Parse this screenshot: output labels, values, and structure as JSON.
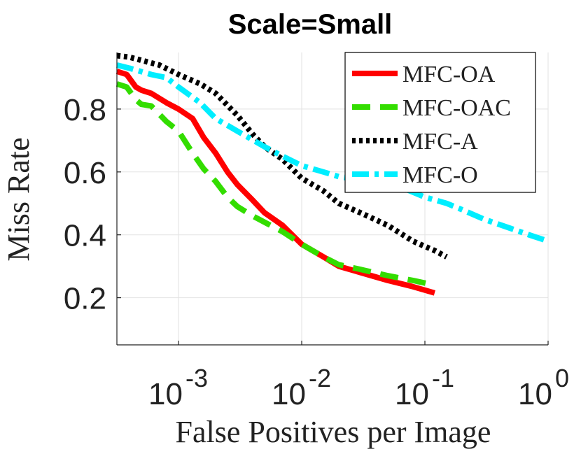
{
  "chart_data": {
    "type": "line",
    "title": "Scale=Small",
    "xlabel": "False Positives per Image",
    "ylabel": "Miss Rate",
    "x_scale": "log",
    "xlim": [
      0.0003162,
      1.0
    ],
    "ylim": [
      0.05,
      0.98
    ],
    "grid": true,
    "legend_position": "top-right",
    "x_ticks": [
      {
        "value": 0.001,
        "base": "10",
        "exponent": "-3"
      },
      {
        "value": 0.01,
        "base": "10",
        "exponent": "-2"
      },
      {
        "value": 0.1,
        "base": "10",
        "exponent": "-1"
      },
      {
        "value": 1,
        "base": "10",
        "exponent": "0"
      }
    ],
    "y_ticks": [
      {
        "value": 0.2,
        "label": "0.2"
      },
      {
        "value": 0.4,
        "label": "0.4"
      },
      {
        "value": 0.6,
        "label": "0.6"
      },
      {
        "value": 0.8,
        "label": "0.8"
      }
    ],
    "series": [
      {
        "name": "MFC-OA",
        "color": "#ff0000",
        "style": "solid",
        "points": [
          [
            0.000316,
            0.92
          ],
          [
            0.00038,
            0.91
          ],
          [
            0.00045,
            0.87
          ],
          [
            0.0005,
            0.86
          ],
          [
            0.0006,
            0.85
          ],
          [
            0.0008,
            0.82
          ],
          [
            0.001,
            0.8
          ],
          [
            0.0013,
            0.77
          ],
          [
            0.0016,
            0.71
          ],
          [
            0.002,
            0.66
          ],
          [
            0.0025,
            0.6
          ],
          [
            0.003,
            0.56
          ],
          [
            0.004,
            0.51
          ],
          [
            0.005,
            0.47
          ],
          [
            0.007,
            0.43
          ],
          [
            0.01,
            0.37
          ],
          [
            0.015,
            0.33
          ],
          [
            0.02,
            0.3
          ],
          [
            0.03,
            0.28
          ],
          [
            0.05,
            0.255
          ],
          [
            0.08,
            0.235
          ],
          [
            0.12,
            0.215
          ]
        ]
      },
      {
        "name": "MFC-OAC",
        "color": "#33dd00",
        "style": "dashed",
        "points": [
          [
            0.000316,
            0.88
          ],
          [
            0.00038,
            0.87
          ],
          [
            0.00045,
            0.83
          ],
          [
            0.0005,
            0.815
          ],
          [
            0.0006,
            0.81
          ],
          [
            0.0008,
            0.76
          ],
          [
            0.001,
            0.73
          ],
          [
            0.0013,
            0.66
          ],
          [
            0.0016,
            0.61
          ],
          [
            0.002,
            0.57
          ],
          [
            0.0025,
            0.52
          ],
          [
            0.003,
            0.49
          ],
          [
            0.004,
            0.46
          ],
          [
            0.005,
            0.44
          ],
          [
            0.007,
            0.41
          ],
          [
            0.01,
            0.37
          ],
          [
            0.015,
            0.33
          ],
          [
            0.02,
            0.305
          ],
          [
            0.03,
            0.29
          ],
          [
            0.05,
            0.27
          ],
          [
            0.08,
            0.255
          ],
          [
            0.12,
            0.24
          ]
        ]
      },
      {
        "name": "MFC-A",
        "color": "#000000",
        "style": "dotted",
        "points": [
          [
            0.000316,
            0.97
          ],
          [
            0.0004,
            0.965
          ],
          [
            0.0005,
            0.955
          ],
          [
            0.0007,
            0.94
          ],
          [
            0.001,
            0.91
          ],
          [
            0.0015,
            0.88
          ],
          [
            0.002,
            0.85
          ],
          [
            0.003,
            0.78
          ],
          [
            0.004,
            0.72
          ],
          [
            0.005,
            0.68
          ],
          [
            0.007,
            0.64
          ],
          [
            0.01,
            0.58
          ],
          [
            0.015,
            0.54
          ],
          [
            0.02,
            0.5
          ],
          [
            0.03,
            0.47
          ],
          [
            0.05,
            0.43
          ],
          [
            0.08,
            0.38
          ],
          [
            0.12,
            0.35
          ],
          [
            0.15,
            0.33
          ]
        ]
      },
      {
        "name": "MFC-O",
        "color": "#00eeff",
        "style": "dashdot",
        "points": [
          [
            0.000316,
            0.94
          ],
          [
            0.0004,
            0.93
          ],
          [
            0.0006,
            0.91
          ],
          [
            0.0008,
            0.9
          ],
          [
            0.001,
            0.87
          ],
          [
            0.0015,
            0.82
          ],
          [
            0.002,
            0.77
          ],
          [
            0.003,
            0.73
          ],
          [
            0.005,
            0.68
          ],
          [
            0.007,
            0.65
          ],
          [
            0.01,
            0.62
          ],
          [
            0.015,
            0.6
          ],
          [
            0.02,
            0.585
          ],
          [
            0.03,
            0.575
          ],
          [
            0.05,
            0.56
          ],
          [
            0.07,
            0.545
          ],
          [
            0.1,
            0.52
          ],
          [
            0.15,
            0.5
          ],
          [
            0.2,
            0.48
          ],
          [
            0.3,
            0.45
          ],
          [
            0.5,
            0.42
          ],
          [
            0.7,
            0.4
          ],
          [
            1.0,
            0.38
          ]
        ]
      }
    ]
  }
}
